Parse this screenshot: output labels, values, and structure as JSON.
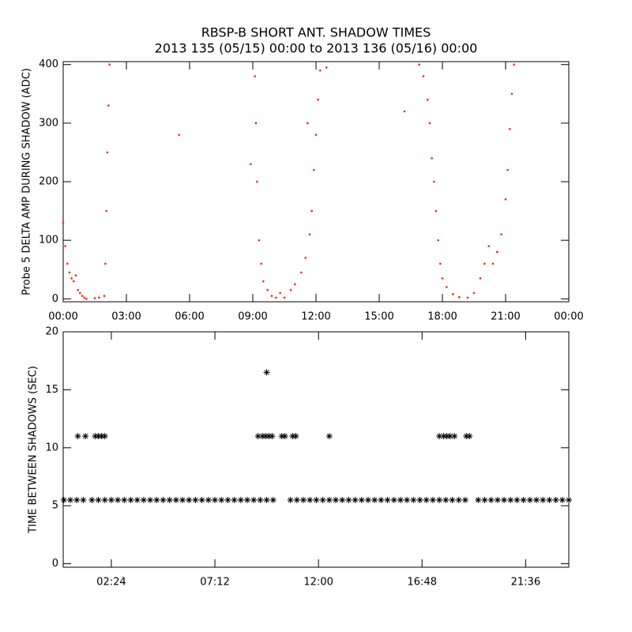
{
  "title": "RBSP-B SHORT ANT. SHADOW TIMES",
  "subtitle": "2013 135 (05/15) 00:00 to 2013 136 (05/16) 00:00",
  "chart_data": [
    {
      "type": "scatter",
      "y_label": "Probe 5 DELTA AMP DURING SHADOW (ADC)",
      "color": "#ff2000",
      "xlim": [
        0,
        24
      ],
      "ylim": [
        -5,
        405
      ],
      "xticks": [
        {
          "value": 0,
          "label": "00:00"
        },
        {
          "value": 3,
          "label": "03:00"
        },
        {
          "value": 6,
          "label": "06:00"
        },
        {
          "value": 9,
          "label": "09:00"
        },
        {
          "value": 12,
          "label": "12:00"
        },
        {
          "value": 15,
          "label": "15:00"
        },
        {
          "value": 18,
          "label": "18:00"
        },
        {
          "value": 21,
          "label": "21:00"
        },
        {
          "value": 24,
          "label": "00:00"
        }
      ],
      "yticks": [
        0,
        100,
        200,
        300,
        400
      ],
      "x": [
        0,
        0.1,
        0.2,
        0.3,
        0.4,
        0.5,
        0.6,
        0.7,
        0.8,
        0.9,
        1.0,
        1.1,
        1.5,
        1.7,
        1.95,
        2.0,
        2.05,
        2.1,
        2.15,
        2.2,
        5.5,
        8.9,
        9.1,
        9.15,
        9.2,
        9.3,
        9.4,
        9.5,
        9.7,
        9.9,
        10.1,
        10.3,
        10.5,
        10.8,
        11.0,
        11.3,
        11.5,
        11.7,
        11.8,
        11.9,
        12.0,
        12.1,
        12.2,
        11.6,
        12.5,
        16.2,
        16.9,
        17.1,
        17.3,
        17.4,
        17.5,
        17.6,
        17.7,
        17.8,
        17.9,
        18.0,
        18.2,
        18.5,
        18.8,
        19.2,
        19.5,
        19.8,
        20.0,
        20.2,
        20.4,
        20.6,
        20.8,
        21.0,
        21.1,
        21.2,
        21.3,
        21.4
      ],
      "values": [
        130,
        90,
        60,
        45,
        35,
        30,
        40,
        15,
        10,
        5,
        2,
        0,
        1,
        2,
        5,
        60,
        150,
        250,
        330,
        400,
        280,
        230,
        380,
        300,
        200,
        100,
        60,
        30,
        15,
        5,
        2,
        10,
        2,
        15,
        25,
        45,
        70,
        110,
        150,
        220,
        280,
        340,
        390,
        300,
        395,
        320,
        400,
        380,
        340,
        300,
        240,
        200,
        150,
        100,
        60,
        35,
        20,
        8,
        3,
        2,
        10,
        35,
        60,
        90,
        60,
        80,
        110,
        170,
        220,
        290,
        350,
        400
      ]
    },
    {
      "type": "scatter",
      "y_label": "TIME BETWEEN SHADOWS (SEC)",
      "color": "#000000",
      "xlim": [
        0.17,
        23.6
      ],
      "ylim": [
        -0.3,
        20
      ],
      "xticks": [
        {
          "value": 2.4,
          "label": "02:24"
        },
        {
          "value": 7.2,
          "label": "07:12"
        },
        {
          "value": 12,
          "label": "12:00"
        },
        {
          "value": 16.8,
          "label": "16:48"
        },
        {
          "value": 21.6,
          "label": "21:36"
        }
      ],
      "yticks": [
        0,
        5,
        10,
        15,
        20
      ],
      "x": [
        0.2,
        0.5,
        0.8,
        1.1,
        1.5,
        1.8,
        2.1,
        2.4,
        2.7,
        3.0,
        3.3,
        3.6,
        3.9,
        4.2,
        4.5,
        4.8,
        5.1,
        5.4,
        5.7,
        6.0,
        6.3,
        6.6,
        6.9,
        7.2,
        7.5,
        7.8,
        8.1,
        8.4,
        8.7,
        9.0,
        9.3,
        9.6,
        9.9,
        10.7,
        11.0,
        11.3,
        11.6,
        11.9,
        12.2,
        12.5,
        12.8,
        13.1,
        13.4,
        13.7,
        14.0,
        14.3,
        14.6,
        14.9,
        15.2,
        15.5,
        15.8,
        16.1,
        16.4,
        16.7,
        17.0,
        17.3,
        17.6,
        17.9,
        18.2,
        18.5,
        18.8,
        19.4,
        19.7,
        20.0,
        20.3,
        20.6,
        20.9,
        21.2,
        21.5,
        21.8,
        22.1,
        22.4,
        22.7,
        23.0,
        23.3,
        23.6,
        0.85,
        1.2,
        1.65,
        1.8,
        1.95,
        2.1,
        9.2,
        9.4,
        9.55,
        9.7,
        9.85,
        10.3,
        10.45,
        10.8,
        10.95,
        12.5,
        17.6,
        17.8,
        17.95,
        18.1,
        18.3,
        18.85,
        19.0,
        9.6
      ],
      "values": [
        5.5,
        5.5,
        5.5,
        5.5,
        5.5,
        5.5,
        5.5,
        5.5,
        5.5,
        5.5,
        5.5,
        5.5,
        5.5,
        5.5,
        5.5,
        5.5,
        5.5,
        5.5,
        5.5,
        5.5,
        5.5,
        5.5,
        5.5,
        5.5,
        5.5,
        5.5,
        5.5,
        5.5,
        5.5,
        5.5,
        5.5,
        5.5,
        5.5,
        5.5,
        5.5,
        5.5,
        5.5,
        5.5,
        5.5,
        5.5,
        5.5,
        5.5,
        5.5,
        5.5,
        5.5,
        5.5,
        5.5,
        5.5,
        5.5,
        5.5,
        5.5,
        5.5,
        5.5,
        5.5,
        5.5,
        5.5,
        5.5,
        5.5,
        5.5,
        5.5,
        5.5,
        5.5,
        5.5,
        5.5,
        5.5,
        5.5,
        5.5,
        5.5,
        5.5,
        5.5,
        5.5,
        5.5,
        5.5,
        5.5,
        5.5,
        5.5,
        11,
        11,
        11,
        11,
        11,
        11,
        11,
        11,
        11,
        11,
        11,
        11,
        11,
        11,
        11,
        11,
        11,
        11,
        11,
        11,
        11,
        11,
        11,
        16.5
      ]
    }
  ]
}
